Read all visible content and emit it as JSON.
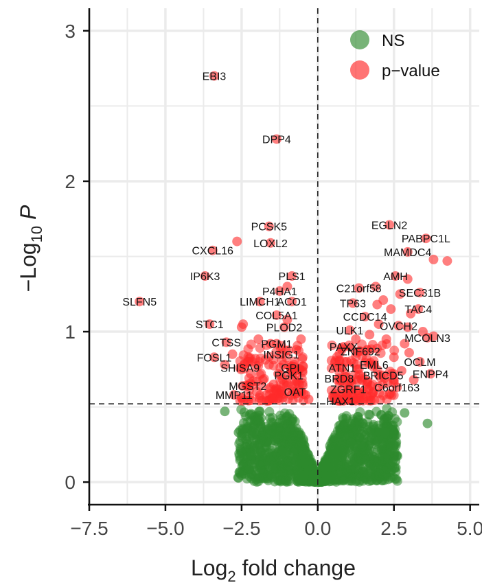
{
  "chart_data": {
    "type": "scatter",
    "title": "",
    "xlabel": {
      "base": "Log",
      "sub": "2",
      "rest": " fold change"
    },
    "ylabel": {
      "prefix": "−Log",
      "sub": "10",
      "italic": " P"
    },
    "xlim": [
      -7.5,
      5.3
    ],
    "ylim": [
      -0.15,
      3.15
    ],
    "x_ticks": [
      -7.5,
      -5.0,
      -2.5,
      0.0,
      2.5,
      5.0
    ],
    "x_tick_labels": [
      "−7.5",
      "−5.0",
      "−2.5",
      "0.0",
      "2.5",
      "5.0"
    ],
    "y_ticks": [
      0,
      1,
      2,
      3
    ],
    "y_tick_labels": [
      "0",
      "1",
      "2",
      "3"
    ],
    "grid": true,
    "cutoff_p": 0.52,
    "cutoff_fc": 0,
    "colors": {
      "ns": "#2e8b2e",
      "sig": "#ff2a2a",
      "grid": "#ebebeb"
    },
    "legend": {
      "position": "top-right",
      "items": [
        {
          "label": "NS",
          "color": "#2e8b2e"
        },
        {
          "label": "p−value",
          "color": "#ff2a2a"
        }
      ]
    },
    "series": [
      {
        "name": "p−value",
        "points": [
          {
            "label": "EBI3",
            "x": -3.4,
            "y": 2.7
          },
          {
            "label": "DPP4",
            "x": -1.35,
            "y": 2.28
          },
          {
            "label": "PCSK5",
            "x": -1.6,
            "y": 1.7
          },
          {
            "label": "LOXL2",
            "x": -1.55,
            "y": 1.59
          },
          {
            "label": "CXCL16",
            "x": -3.45,
            "y": 1.54
          },
          {
            "label": "IP6K3",
            "x": -3.7,
            "y": 1.37
          },
          {
            "label": "SLFN5",
            "x": -5.85,
            "y": 1.2
          },
          {
            "label": "PLS1",
            "x": -0.85,
            "y": 1.37
          },
          {
            "label": "P4HA1",
            "x": -1.25,
            "y": 1.27
          },
          {
            "label": "LIMCH1",
            "x": -1.9,
            "y": 1.2
          },
          {
            "label": "ACO1",
            "x": -0.85,
            "y": 1.2
          },
          {
            "label": "COL5A1",
            "x": -1.35,
            "y": 1.11
          },
          {
            "label": "STC1",
            "x": -3.55,
            "y": 1.05
          },
          {
            "label": "PLOD2",
            "x": -1.1,
            "y": 1.03
          },
          {
            "label": "CTSS",
            "x": -3.0,
            "y": 0.93
          },
          {
            "label": "PGM1",
            "x": -1.35,
            "y": 0.92
          },
          {
            "label": "FOSL1",
            "x": -3.4,
            "y": 0.83
          },
          {
            "label": "INSIG1",
            "x": -1.2,
            "y": 0.85
          },
          {
            "label": "SHISA9",
            "x": -2.55,
            "y": 0.76
          },
          {
            "label": "GPI",
            "x": -0.9,
            "y": 0.76
          },
          {
            "label": "PGK1",
            "x": -0.95,
            "y": 0.71
          },
          {
            "label": "MGST2",
            "x": -2.3,
            "y": 0.64
          },
          {
            "label": "MMP11",
            "x": -2.75,
            "y": 0.58
          },
          {
            "label": "OAT",
            "x": -0.75,
            "y": 0.6
          },
          {
            "label": "EGLN2",
            "x": 2.35,
            "y": 1.71
          },
          {
            "label": "PABPC1L",
            "x": 3.55,
            "y": 1.62
          },
          {
            "label": "MAMDC4",
            "x": 2.95,
            "y": 1.53
          },
          {
            "label": "AMH",
            "x": 2.55,
            "y": 1.37
          },
          {
            "label": "C21orf58",
            "x": 1.35,
            "y": 1.29
          },
          {
            "label": "SEC31B",
            "x": 3.35,
            "y": 1.26
          },
          {
            "label": "TP63",
            "x": 1.15,
            "y": 1.19
          },
          {
            "label": "TAC4",
            "x": 3.3,
            "y": 1.15
          },
          {
            "label": "CCDC14",
            "x": 1.55,
            "y": 1.1
          },
          {
            "label": "OVCH2",
            "x": 2.65,
            "y": 1.04
          },
          {
            "label": "ULK1",
            "x": 1.05,
            "y": 1.01
          },
          {
            "label": "MCOLN3",
            "x": 3.6,
            "y": 0.96
          },
          {
            "label": "PAXX",
            "x": 0.85,
            "y": 0.9
          },
          {
            "label": "ZNF692",
            "x": 1.4,
            "y": 0.87
          },
          {
            "label": "OCLM",
            "x": 3.35,
            "y": 0.8
          },
          {
            "label": "ATN1",
            "x": 0.8,
            "y": 0.76
          },
          {
            "label": "EML6",
            "x": 1.85,
            "y": 0.78
          },
          {
            "label": "ENPP4",
            "x": 3.7,
            "y": 0.72
          },
          {
            "label": "BRD8",
            "x": 0.7,
            "y": 0.69
          },
          {
            "label": "BRICD5",
            "x": 2.15,
            "y": 0.71
          },
          {
            "label": "C6orf163",
            "x": 2.6,
            "y": 0.63
          },
          {
            "label": "ZGRF1",
            "x": 1.0,
            "y": 0.62
          },
          {
            "label": "HAX1",
            "x": 0.75,
            "y": 0.54
          },
          {
            "x": 4.25,
            "y": 1.47
          },
          {
            "x": 3.8,
            "y": 1.48
          },
          {
            "x": 2.15,
            "y": 1.21
          },
          {
            "x": 1.9,
            "y": 1.3
          },
          {
            "x": 2.4,
            "y": 1.15
          },
          {
            "x": 2.95,
            "y": 1.35
          },
          {
            "x": 3.05,
            "y": 1.12
          },
          {
            "x": 2.0,
            "y": 1.05
          },
          {
            "x": 2.25,
            "y": 0.95
          },
          {
            "x": 2.85,
            "y": 0.92
          },
          {
            "x": 1.7,
            "y": 0.98
          },
          {
            "x": 3.0,
            "y": 0.86
          },
          {
            "x": 2.5,
            "y": 0.83
          },
          {
            "x": 1.6,
            "y": 0.82
          },
          {
            "x": 2.75,
            "y": 0.74
          },
          {
            "x": 2.3,
            "y": 0.66
          },
          {
            "x": 1.75,
            "y": 0.64
          },
          {
            "x": 3.15,
            "y": 0.68
          },
          {
            "x": 2.95,
            "y": 1.03
          },
          {
            "x": 1.3,
            "y": 0.75
          },
          {
            "x": 1.1,
            "y": 0.66
          },
          {
            "x": 1.5,
            "y": 0.6
          },
          {
            "x": 0.6,
            "y": 0.6
          },
          {
            "x": 0.95,
            "y": 0.8
          },
          {
            "x": 1.25,
            "y": 0.95
          },
          {
            "x": 3.45,
            "y": 1.0
          },
          {
            "x": 1.95,
            "y": 1.18
          },
          {
            "x": 2.7,
            "y": 1.25
          },
          {
            "x": 3.8,
            "y": 0.97
          },
          {
            "x": 0.5,
            "y": 0.56
          },
          {
            "x": -2.65,
            "y": 1.6
          },
          {
            "x": -2.45,
            "y": 1.05
          },
          {
            "x": -2.5,
            "y": 1.03
          },
          {
            "x": -2.05,
            "y": 0.82
          },
          {
            "x": -1.95,
            "y": 0.95
          },
          {
            "x": -2.2,
            "y": 0.72
          },
          {
            "x": -1.8,
            "y": 0.68
          },
          {
            "x": -1.6,
            "y": 0.78
          },
          {
            "x": -1.45,
            "y": 0.65
          },
          {
            "x": -2.0,
            "y": 0.6
          },
          {
            "x": -1.7,
            "y": 0.58
          },
          {
            "x": -1.2,
            "y": 0.6
          },
          {
            "x": -0.65,
            "y": 0.66
          },
          {
            "x": -0.5,
            "y": 0.74
          },
          {
            "x": -0.4,
            "y": 0.58
          },
          {
            "x": -0.7,
            "y": 0.88
          },
          {
            "x": -1.0,
            "y": 1.08
          },
          {
            "x": -2.8,
            "y": 0.85
          },
          {
            "x": -3.05,
            "y": 0.78
          },
          {
            "x": -1.3,
            "y": 0.72
          },
          {
            "x": -0.3,
            "y": 0.55
          },
          {
            "x": -1.55,
            "y": 0.92
          },
          {
            "x": -1.0,
            "y": 1.3
          },
          {
            "x": -0.55,
            "y": 0.95
          },
          {
            "x": -2.3,
            "y": 0.8
          },
          {
            "x": -1.15,
            "y": 0.56
          }
        ]
      }
    ]
  }
}
